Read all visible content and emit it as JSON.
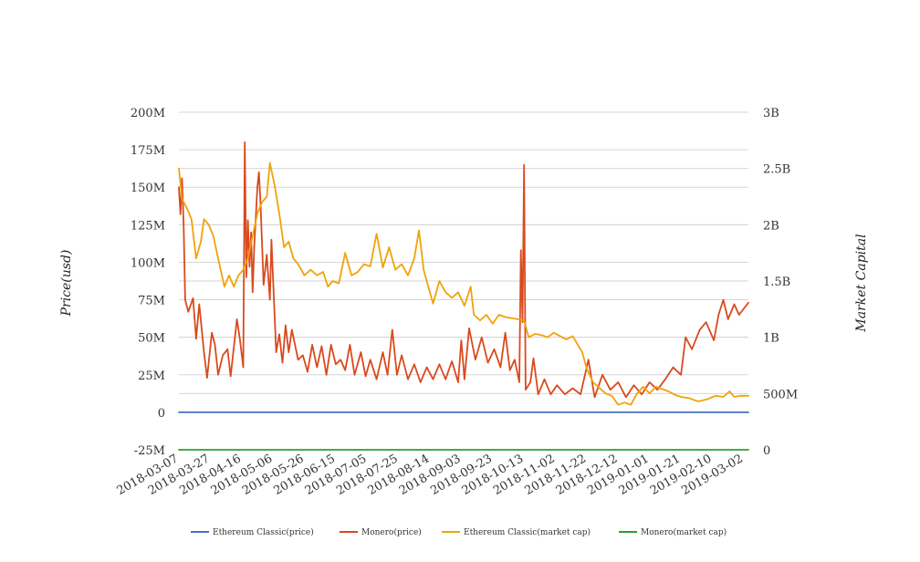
{
  "chart_data": {
    "type": "line",
    "x_labels": [
      "2018-03-07",
      "2018-03-27",
      "2018-04-16",
      "2018-05-06",
      "2018-05-26",
      "2018-06-15",
      "2018-07-05",
      "2018-07-25",
      "2018-08-14",
      "2018-09-03",
      "2018-09-23",
      "2018-10-13",
      "2018-11-02",
      "2018-11-22",
      "2018-12-12",
      "2019-01-01",
      "2019-01-21",
      "2019-02-10",
      "2019-03-02"
    ],
    "x_start": "2018-03-07",
    "x_end": "2019-03-05",
    "y_left": {
      "label": "Price(usd)",
      "range": [
        -25000000,
        200000000
      ],
      "ticks": [
        -25000000,
        0,
        25000000,
        50000000,
        75000000,
        100000000,
        125000000,
        150000000,
        175000000,
        200000000
      ],
      "tick_labels": [
        "-25M",
        "0",
        "25M",
        "50M",
        "75M",
        "100M",
        "125M",
        "150M",
        "175M",
        "200M"
      ]
    },
    "y_right": {
      "label": "Market Capital",
      "range": [
        0,
        3000000000
      ],
      "ticks": [
        0,
        500000000,
        1000000000,
        1500000000,
        2000000000,
        2500000000,
        3000000000
      ],
      "tick_labels": [
        "0",
        "500M",
        "1B",
        "1.5B",
        "2B",
        "2.5B",
        "3B"
      ]
    },
    "grid": true,
    "legend_position": "bottom",
    "series": [
      {
        "name": "Ethereum Classic(price)",
        "axis": "left",
        "color": "#4472c4",
        "points": [
          [
            "2018-03-07",
            15
          ],
          [
            "2018-06-01",
            14
          ],
          [
            "2018-09-01",
            12
          ],
          [
            "2018-12-01",
            5
          ],
          [
            "2019-03-05",
            5
          ]
        ]
      },
      {
        "name": "Monero(price)",
        "axis": "left",
        "color": "#d94a1e",
        "points": [
          [
            "2018-03-07",
            150000000
          ],
          [
            "2018-03-08",
            132000000
          ],
          [
            "2018-03-09",
            156000000
          ],
          [
            "2018-03-10",
            125000000
          ],
          [
            "2018-03-11",
            75000000
          ],
          [
            "2018-03-13",
            67000000
          ],
          [
            "2018-03-16",
            76000000
          ],
          [
            "2018-03-18",
            49000000
          ],
          [
            "2018-03-20",
            72000000
          ],
          [
            "2018-03-23",
            40000000
          ],
          [
            "2018-03-25",
            23000000
          ],
          [
            "2018-03-28",
            53000000
          ],
          [
            "2018-03-30",
            45000000
          ],
          [
            "2018-04-01",
            25000000
          ],
          [
            "2018-04-04",
            38000000
          ],
          [
            "2018-04-07",
            42000000
          ],
          [
            "2018-04-09",
            24000000
          ],
          [
            "2018-04-13",
            62000000
          ],
          [
            "2018-04-15",
            48000000
          ],
          [
            "2018-04-17",
            30000000
          ],
          [
            "2018-04-18",
            180000000
          ],
          [
            "2018-04-19",
            90000000
          ],
          [
            "2018-04-20",
            128000000
          ],
          [
            "2018-04-21",
            97000000
          ],
          [
            "2018-04-22",
            120000000
          ],
          [
            "2018-04-23",
            80000000
          ],
          [
            "2018-04-24",
            110000000
          ],
          [
            "2018-04-26",
            150000000
          ],
          [
            "2018-04-27",
            160000000
          ],
          [
            "2018-04-28",
            140000000
          ],
          [
            "2018-04-30",
            85000000
          ],
          [
            "2018-05-02",
            105000000
          ],
          [
            "2018-05-04",
            75000000
          ],
          [
            "2018-05-05",
            115000000
          ],
          [
            "2018-05-06",
            90000000
          ],
          [
            "2018-05-08",
            40000000
          ],
          [
            "2018-05-10",
            52000000
          ],
          [
            "2018-05-12",
            33000000
          ],
          [
            "2018-05-14",
            58000000
          ],
          [
            "2018-05-16",
            40000000
          ],
          [
            "2018-05-18",
            55000000
          ],
          [
            "2018-05-22",
            35000000
          ],
          [
            "2018-05-25",
            38000000
          ],
          [
            "2018-05-28",
            27000000
          ],
          [
            "2018-05-31",
            45000000
          ],
          [
            "2018-06-03",
            30000000
          ],
          [
            "2018-06-06",
            44000000
          ],
          [
            "2018-06-09",
            25000000
          ],
          [
            "2018-06-12",
            45000000
          ],
          [
            "2018-06-15",
            32000000
          ],
          [
            "2018-06-18",
            35000000
          ],
          [
            "2018-06-21",
            28000000
          ],
          [
            "2018-06-24",
            45000000
          ],
          [
            "2018-06-27",
            25000000
          ],
          [
            "2018-07-01",
            40000000
          ],
          [
            "2018-07-04",
            24000000
          ],
          [
            "2018-07-07",
            35000000
          ],
          [
            "2018-07-11",
            22000000
          ],
          [
            "2018-07-15",
            40000000
          ],
          [
            "2018-07-18",
            25000000
          ],
          [
            "2018-07-21",
            55000000
          ],
          [
            "2018-07-24",
            25000000
          ],
          [
            "2018-07-27",
            38000000
          ],
          [
            "2018-07-31",
            22000000
          ],
          [
            "2018-08-04",
            32000000
          ],
          [
            "2018-08-08",
            20000000
          ],
          [
            "2018-08-12",
            30000000
          ],
          [
            "2018-08-16",
            22000000
          ],
          [
            "2018-08-20",
            32000000
          ],
          [
            "2018-08-24",
            22000000
          ],
          [
            "2018-08-28",
            34000000
          ],
          [
            "2018-09-01",
            20000000
          ],
          [
            "2018-09-03",
            48000000
          ],
          [
            "2018-09-05",
            22000000
          ],
          [
            "2018-09-08",
            56000000
          ],
          [
            "2018-09-12",
            35000000
          ],
          [
            "2018-09-16",
            50000000
          ],
          [
            "2018-09-20",
            33000000
          ],
          [
            "2018-09-24",
            42000000
          ],
          [
            "2018-09-28",
            30000000
          ],
          [
            "2018-10-01",
            53000000
          ],
          [
            "2018-10-04",
            28000000
          ],
          [
            "2018-10-07",
            35000000
          ],
          [
            "2018-10-10",
            20000000
          ],
          [
            "2018-10-11",
            108000000
          ],
          [
            "2018-10-12",
            60000000
          ],
          [
            "2018-10-13",
            165000000
          ],
          [
            "2018-10-14",
            15000000
          ],
          [
            "2018-10-17",
            20000000
          ],
          [
            "2018-10-19",
            36000000
          ],
          [
            "2018-10-22",
            12000000
          ],
          [
            "2018-10-26",
            22000000
          ],
          [
            "2018-10-30",
            12000000
          ],
          [
            "2018-11-03",
            18000000
          ],
          [
            "2018-11-08",
            12000000
          ],
          [
            "2018-11-13",
            16000000
          ],
          [
            "2018-11-18",
            12000000
          ],
          [
            "2018-11-23",
            35000000
          ],
          [
            "2018-11-27",
            10000000
          ],
          [
            "2018-12-02",
            25000000
          ],
          [
            "2018-12-07",
            15000000
          ],
          [
            "2018-12-12",
            20000000
          ],
          [
            "2018-12-17",
            10000000
          ],
          [
            "2018-12-22",
            18000000
          ],
          [
            "2018-12-27",
            12000000
          ],
          [
            "2019-01-01",
            20000000
          ],
          [
            "2019-01-06",
            15000000
          ],
          [
            "2019-01-11",
            22000000
          ],
          [
            "2019-01-16",
            30000000
          ],
          [
            "2019-01-21",
            25000000
          ],
          [
            "2019-01-24",
            50000000
          ],
          [
            "2019-01-28",
            42000000
          ],
          [
            "2019-02-02",
            55000000
          ],
          [
            "2019-02-06",
            60000000
          ],
          [
            "2019-02-11",
            48000000
          ],
          [
            "2019-02-14",
            65000000
          ],
          [
            "2019-02-17",
            75000000
          ],
          [
            "2019-02-20",
            62000000
          ],
          [
            "2019-02-24",
            72000000
          ],
          [
            "2019-02-27",
            65000000
          ],
          [
            "2019-03-05",
            73000000
          ]
        ]
      },
      {
        "name": "Ethereum Classic(market cap)",
        "axis": "right",
        "color": "#f0a30a",
        "points": [
          [
            "2018-03-07",
            2500000000
          ],
          [
            "2018-03-09",
            2230000000
          ],
          [
            "2018-03-12",
            2150000000
          ],
          [
            "2018-03-15",
            2050000000
          ],
          [
            "2018-03-18",
            1700000000
          ],
          [
            "2018-03-21",
            1850000000
          ],
          [
            "2018-03-23",
            2050000000
          ],
          [
            "2018-03-26",
            2000000000
          ],
          [
            "2018-03-29",
            1900000000
          ],
          [
            "2018-04-01",
            1700000000
          ],
          [
            "2018-04-05",
            1450000000
          ],
          [
            "2018-04-08",
            1550000000
          ],
          [
            "2018-04-11",
            1450000000
          ],
          [
            "2018-04-14",
            1550000000
          ],
          [
            "2018-04-17",
            1600000000
          ],
          [
            "2018-04-20",
            1700000000
          ],
          [
            "2018-04-23",
            1900000000
          ],
          [
            "2018-04-26",
            2100000000
          ],
          [
            "2018-04-29",
            2200000000
          ],
          [
            "2018-05-02",
            2250000000
          ],
          [
            "2018-05-04",
            2550000000
          ],
          [
            "2018-05-07",
            2350000000
          ],
          [
            "2018-05-10",
            2100000000
          ],
          [
            "2018-05-13",
            1800000000
          ],
          [
            "2018-05-16",
            1850000000
          ],
          [
            "2018-05-19",
            1700000000
          ],
          [
            "2018-05-22",
            1650000000
          ],
          [
            "2018-05-26",
            1550000000
          ],
          [
            "2018-05-30",
            1600000000
          ],
          [
            "2018-06-03",
            1550000000
          ],
          [
            "2018-06-07",
            1580000000
          ],
          [
            "2018-06-10",
            1450000000
          ],
          [
            "2018-06-13",
            1500000000
          ],
          [
            "2018-06-17",
            1480000000
          ],
          [
            "2018-06-21",
            1750000000
          ],
          [
            "2018-06-25",
            1550000000
          ],
          [
            "2018-06-29",
            1580000000
          ],
          [
            "2018-07-03",
            1650000000
          ],
          [
            "2018-07-07",
            1630000000
          ],
          [
            "2018-07-11",
            1920000000
          ],
          [
            "2018-07-15",
            1620000000
          ],
          [
            "2018-07-19",
            1800000000
          ],
          [
            "2018-07-23",
            1600000000
          ],
          [
            "2018-07-27",
            1650000000
          ],
          [
            "2018-07-31",
            1550000000
          ],
          [
            "2018-08-04",
            1700000000
          ],
          [
            "2018-08-07",
            1950000000
          ],
          [
            "2018-08-10",
            1600000000
          ],
          [
            "2018-08-13",
            1450000000
          ],
          [
            "2018-08-16",
            1300000000
          ],
          [
            "2018-08-20",
            1500000000
          ],
          [
            "2018-08-24",
            1400000000
          ],
          [
            "2018-08-28",
            1350000000
          ],
          [
            "2018-09-01",
            1400000000
          ],
          [
            "2018-09-05",
            1280000000
          ],
          [
            "2018-09-09",
            1450000000
          ],
          [
            "2018-09-11",
            1200000000
          ],
          [
            "2018-09-15",
            1150000000
          ],
          [
            "2018-09-19",
            1200000000
          ],
          [
            "2018-09-23",
            1120000000
          ],
          [
            "2018-09-27",
            1200000000
          ],
          [
            "2018-10-01",
            1180000000
          ],
          [
            "2018-10-05",
            1170000000
          ],
          [
            "2018-10-09",
            1160000000
          ],
          [
            "2018-10-13",
            1150000000
          ],
          [
            "2018-10-16",
            1000000000
          ],
          [
            "2018-10-20",
            1030000000
          ],
          [
            "2018-10-24",
            1020000000
          ],
          [
            "2018-10-28",
            1000000000
          ],
          [
            "2018-11-01",
            1040000000
          ],
          [
            "2018-11-05",
            1010000000
          ],
          [
            "2018-11-09",
            980000000
          ],
          [
            "2018-11-13",
            1010000000
          ],
          [
            "2018-11-16",
            940000000
          ],
          [
            "2018-11-19",
            870000000
          ],
          [
            "2018-11-22",
            720000000
          ],
          [
            "2018-11-26",
            600000000
          ],
          [
            "2018-11-30",
            550000000
          ],
          [
            "2018-12-04",
            500000000
          ],
          [
            "2018-12-08",
            480000000
          ],
          [
            "2018-12-12",
            400000000
          ],
          [
            "2018-12-16",
            420000000
          ],
          [
            "2018-12-20",
            400000000
          ],
          [
            "2018-12-24",
            500000000
          ],
          [
            "2018-12-28",
            560000000
          ],
          [
            "2019-01-01",
            500000000
          ],
          [
            "2019-01-05",
            560000000
          ],
          [
            "2019-01-09",
            540000000
          ],
          [
            "2019-01-13",
            520000000
          ],
          [
            "2019-01-17",
            490000000
          ],
          [
            "2019-01-21",
            470000000
          ],
          [
            "2019-01-26",
            460000000
          ],
          [
            "2019-02-01",
            430000000
          ],
          [
            "2019-02-07",
            450000000
          ],
          [
            "2019-02-12",
            480000000
          ],
          [
            "2019-02-17",
            470000000
          ],
          [
            "2019-02-21",
            520000000
          ],
          [
            "2019-02-24",
            470000000
          ],
          [
            "2019-02-28",
            480000000
          ],
          [
            "2019-03-05",
            480000000
          ]
        ]
      },
      {
        "name": "Monero(market cap)",
        "axis": "right",
        "color": "#2ca02c",
        "points": [
          [
            "2018-03-07",
            3
          ],
          [
            "2018-09-01",
            2
          ],
          [
            "2019-03-05",
            2
          ]
        ]
      }
    ]
  }
}
